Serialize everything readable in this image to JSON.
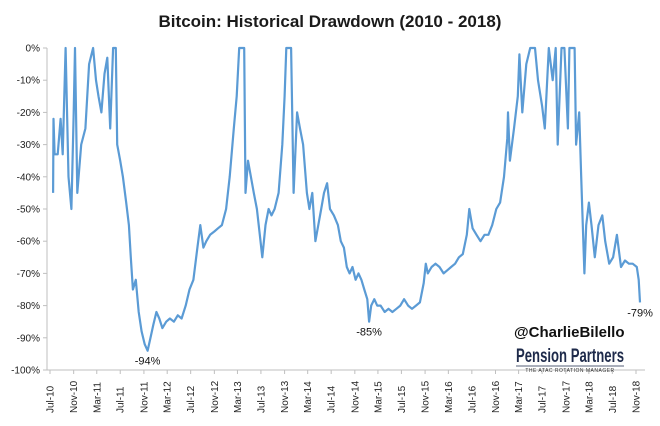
{
  "chart_data": {
    "type": "line",
    "title": "Bitcoin: Historical Drawdown (2010 - 2018)",
    "xlabel": "",
    "ylabel": "",
    "ylim": [
      -100,
      0
    ],
    "y_ticks": [
      "0%",
      "-10%",
      "-20%",
      "-30%",
      "-40%",
      "-50%",
      "-60%",
      "-70%",
      "-80%",
      "-90%",
      "-100%"
    ],
    "x_ticks": [
      "Jul-10",
      "Nov-10",
      "Mar-11",
      "Jul-11",
      "Nov-11",
      "Mar-12",
      "Jul-12",
      "Nov-12",
      "Mar-13",
      "Jul-13",
      "Nov-13",
      "Mar-14",
      "Jul-14",
      "Nov-14",
      "Mar-15",
      "Jul-15",
      "Nov-15",
      "Mar-16",
      "Jul-16",
      "Nov-16",
      "Mar-17",
      "Jul-17",
      "Nov-17",
      "Mar-18",
      "Jul-18",
      "Nov-18"
    ],
    "grid": false,
    "series": [
      {
        "color": "#5b9bd5",
        "points": [
          [
            "2010-07-17",
            -45
          ],
          [
            "2010-07-19",
            -22
          ],
          [
            "2010-07-25",
            -33
          ],
          [
            "2010-08-10",
            -33
          ],
          [
            "2010-08-25",
            -22
          ],
          [
            "2010-09-05",
            -33
          ],
          [
            "2010-09-20",
            0
          ],
          [
            "2010-10-05",
            -40
          ],
          [
            "2010-10-20",
            -50
          ],
          [
            "2010-11-01",
            -20
          ],
          [
            "2010-11-08",
            0
          ],
          [
            "2010-11-20",
            -45
          ],
          [
            "2010-12-10",
            -30
          ],
          [
            "2011-01-01",
            -25
          ],
          [
            "2011-01-20",
            -5
          ],
          [
            "2011-02-10",
            0
          ],
          [
            "2011-02-25",
            -10
          ],
          [
            "2011-03-10",
            -15
          ],
          [
            "2011-03-25",
            -20
          ],
          [
            "2011-04-10",
            -8
          ],
          [
            "2011-04-25",
            -3
          ],
          [
            "2011-05-10",
            -25
          ],
          [
            "2011-05-25",
            0
          ],
          [
            "2011-06-08",
            0
          ],
          [
            "2011-06-15",
            -30
          ],
          [
            "2011-07-01",
            -35
          ],
          [
            "2011-07-15",
            -40
          ],
          [
            "2011-08-01",
            -48
          ],
          [
            "2011-08-15",
            -55
          ],
          [
            "2011-08-25",
            -65
          ],
          [
            "2011-09-05",
            -75
          ],
          [
            "2011-09-20",
            -72
          ],
          [
            "2011-10-05",
            -82
          ],
          [
            "2011-10-20",
            -88
          ],
          [
            "2011-11-05",
            -92
          ],
          [
            "2011-11-20",
            -94
          ],
          [
            "2011-12-05",
            -90
          ],
          [
            "2011-12-20",
            -86
          ],
          [
            "2012-01-05",
            -82
          ],
          [
            "2012-01-20",
            -84
          ],
          [
            "2012-02-05",
            -87
          ],
          [
            "2012-02-25",
            -85
          ],
          [
            "2012-03-15",
            -84
          ],
          [
            "2012-04-05",
            -85
          ],
          [
            "2012-04-25",
            -83
          ],
          [
            "2012-05-15",
            -84
          ],
          [
            "2012-06-05",
            -80
          ],
          [
            "2012-06-25",
            -75
          ],
          [
            "2012-07-15",
            -72
          ],
          [
            "2012-08-05",
            -62
          ],
          [
            "2012-08-20",
            -55
          ],
          [
            "2012-09-05",
            -62
          ],
          [
            "2012-09-20",
            -60
          ],
          [
            "2012-10-10",
            -58
          ],
          [
            "2012-11-01",
            -57
          ],
          [
            "2012-11-20",
            -56
          ],
          [
            "2012-12-10",
            -55
          ],
          [
            "2013-01-01",
            -50
          ],
          [
            "2013-01-20",
            -40
          ],
          [
            "2013-02-10",
            -25
          ],
          [
            "2013-02-25",
            -15
          ],
          [
            "2013-03-10",
            0
          ],
          [
            "2013-03-25",
            0
          ],
          [
            "2013-04-05",
            0
          ],
          [
            "2013-04-12",
            -45
          ],
          [
            "2013-04-25",
            -35
          ],
          [
            "2013-05-10",
            -40
          ],
          [
            "2013-05-25",
            -45
          ],
          [
            "2013-06-10",
            -50
          ],
          [
            "2013-06-25",
            -58
          ],
          [
            "2013-07-08",
            -65
          ],
          [
            "2013-07-25",
            -55
          ],
          [
            "2013-08-10",
            -50
          ],
          [
            "2013-08-25",
            -52
          ],
          [
            "2013-09-10",
            -50
          ],
          [
            "2013-10-01",
            -45
          ],
          [
            "2013-10-20",
            -30
          ],
          [
            "2013-11-01",
            -15
          ],
          [
            "2013-11-10",
            0
          ],
          [
            "2013-11-25",
            0
          ],
          [
            "2013-12-05",
            0
          ],
          [
            "2013-12-18",
            -45
          ],
          [
            "2014-01-05",
            -20
          ],
          [
            "2014-01-20",
            -25
          ],
          [
            "2014-02-05",
            -30
          ],
          [
            "2014-02-25",
            -45
          ],
          [
            "2014-03-10",
            -50
          ],
          [
            "2014-03-25",
            -45
          ],
          [
            "2014-04-10",
            -60
          ],
          [
            "2014-04-25",
            -55
          ],
          [
            "2014-05-10",
            -50
          ],
          [
            "2014-05-25",
            -45
          ],
          [
            "2014-06-10",
            -42
          ],
          [
            "2014-06-25",
            -50
          ],
          [
            "2014-07-15",
            -52
          ],
          [
            "2014-08-05",
            -55
          ],
          [
            "2014-08-20",
            -60
          ],
          [
            "2014-09-05",
            -62
          ],
          [
            "2014-09-20",
            -68
          ],
          [
            "2014-10-05",
            -70
          ],
          [
            "2014-10-20",
            -68
          ],
          [
            "2014-11-05",
            -72
          ],
          [
            "2014-11-20",
            -70
          ],
          [
            "2014-12-05",
            -72
          ],
          [
            "2014-12-20",
            -75
          ],
          [
            "2015-01-05",
            -78
          ],
          [
            "2015-01-14",
            -85
          ],
          [
            "2015-01-25",
            -80
          ],
          [
            "2015-02-10",
            -78
          ],
          [
            "2015-02-25",
            -80
          ],
          [
            "2015-03-15",
            -80
          ],
          [
            "2015-04-05",
            -82
          ],
          [
            "2015-04-25",
            -81
          ],
          [
            "2015-05-15",
            -82
          ],
          [
            "2015-06-05",
            -81
          ],
          [
            "2015-06-25",
            -80
          ],
          [
            "2015-07-15",
            -78
          ],
          [
            "2015-08-05",
            -80
          ],
          [
            "2015-08-25",
            -81
          ],
          [
            "2015-09-15",
            -80
          ],
          [
            "2015-10-05",
            -79
          ],
          [
            "2015-10-25",
            -73
          ],
          [
            "2015-11-05",
            -67
          ],
          [
            "2015-11-15",
            -70
          ],
          [
            "2015-12-05",
            -68
          ],
          [
            "2015-12-25",
            -67
          ],
          [
            "2016-01-15",
            -68
          ],
          [
            "2016-02-05",
            -70
          ],
          [
            "2016-02-25",
            -69
          ],
          [
            "2016-03-15",
            -68
          ],
          [
            "2016-04-05",
            -67
          ],
          [
            "2016-04-25",
            -65
          ],
          [
            "2016-05-15",
            -64
          ],
          [
            "2016-06-05",
            -58
          ],
          [
            "2016-06-18",
            -50
          ],
          [
            "2016-07-05",
            -56
          ],
          [
            "2016-07-25",
            -58
          ],
          [
            "2016-08-15",
            -60
          ],
          [
            "2016-09-05",
            -58
          ],
          [
            "2016-09-25",
            -58
          ],
          [
            "2016-10-15",
            -55
          ],
          [
            "2016-11-05",
            -50
          ],
          [
            "2016-11-25",
            -48
          ],
          [
            "2016-12-15",
            -40
          ],
          [
            "2017-01-01",
            -28
          ],
          [
            "2017-01-05",
            -20
          ],
          [
            "2017-01-15",
            -35
          ],
          [
            "2017-02-05",
            -25
          ],
          [
            "2017-02-25",
            -15
          ],
          [
            "2017-03-05",
            -2
          ],
          [
            "2017-03-20",
            -20
          ],
          [
            "2017-04-10",
            -5
          ],
          [
            "2017-04-30",
            0
          ],
          [
            "2017-05-25",
            0
          ],
          [
            "2017-06-10",
            -10
          ],
          [
            "2017-07-01",
            -18
          ],
          [
            "2017-07-15",
            -25
          ],
          [
            "2017-08-05",
            0
          ],
          [
            "2017-08-25",
            -10
          ],
          [
            "2017-09-10",
            0
          ],
          [
            "2017-09-20",
            -30
          ],
          [
            "2017-10-10",
            0
          ],
          [
            "2017-10-25",
            0
          ],
          [
            "2017-11-12",
            -25
          ],
          [
            "2017-11-20",
            0
          ],
          [
            "2017-12-17",
            0
          ],
          [
            "2017-12-25",
            -30
          ],
          [
            "2018-01-10",
            -20
          ],
          [
            "2018-01-20",
            -40
          ],
          [
            "2018-02-06",
            -70
          ],
          [
            "2018-02-15",
            -55
          ],
          [
            "2018-03-01",
            -48
          ],
          [
            "2018-03-15",
            -55
          ],
          [
            "2018-04-01",
            -65
          ],
          [
            "2018-04-20",
            -55
          ],
          [
            "2018-05-10",
            -52
          ],
          [
            "2018-05-25",
            -60
          ],
          [
            "2018-06-15",
            -67
          ],
          [
            "2018-07-05",
            -65
          ],
          [
            "2018-07-25",
            -58
          ],
          [
            "2018-08-15",
            -68
          ],
          [
            "2018-09-05",
            -66
          ],
          [
            "2018-09-25",
            -67
          ],
          [
            "2018-10-15",
            -67
          ],
          [
            "2018-11-05",
            -68
          ],
          [
            "2018-11-15",
            -72
          ],
          [
            "2018-11-22",
            -79
          ]
        ]
      }
    ],
    "annotations": [
      {
        "text": "-94%",
        "x": "2011-11-20",
        "y": -94
      },
      {
        "text": "-85%",
        "x": "2015-01-14",
        "y": -85
      },
      {
        "text": "-79%",
        "x": "2018-11-22",
        "y": -79
      }
    ]
  },
  "watermark": {
    "handle": "@CharlieBilello",
    "brand": "Pension Partners",
    "brand_tagline": "THE ATAC ROTATION MANAGER"
  }
}
